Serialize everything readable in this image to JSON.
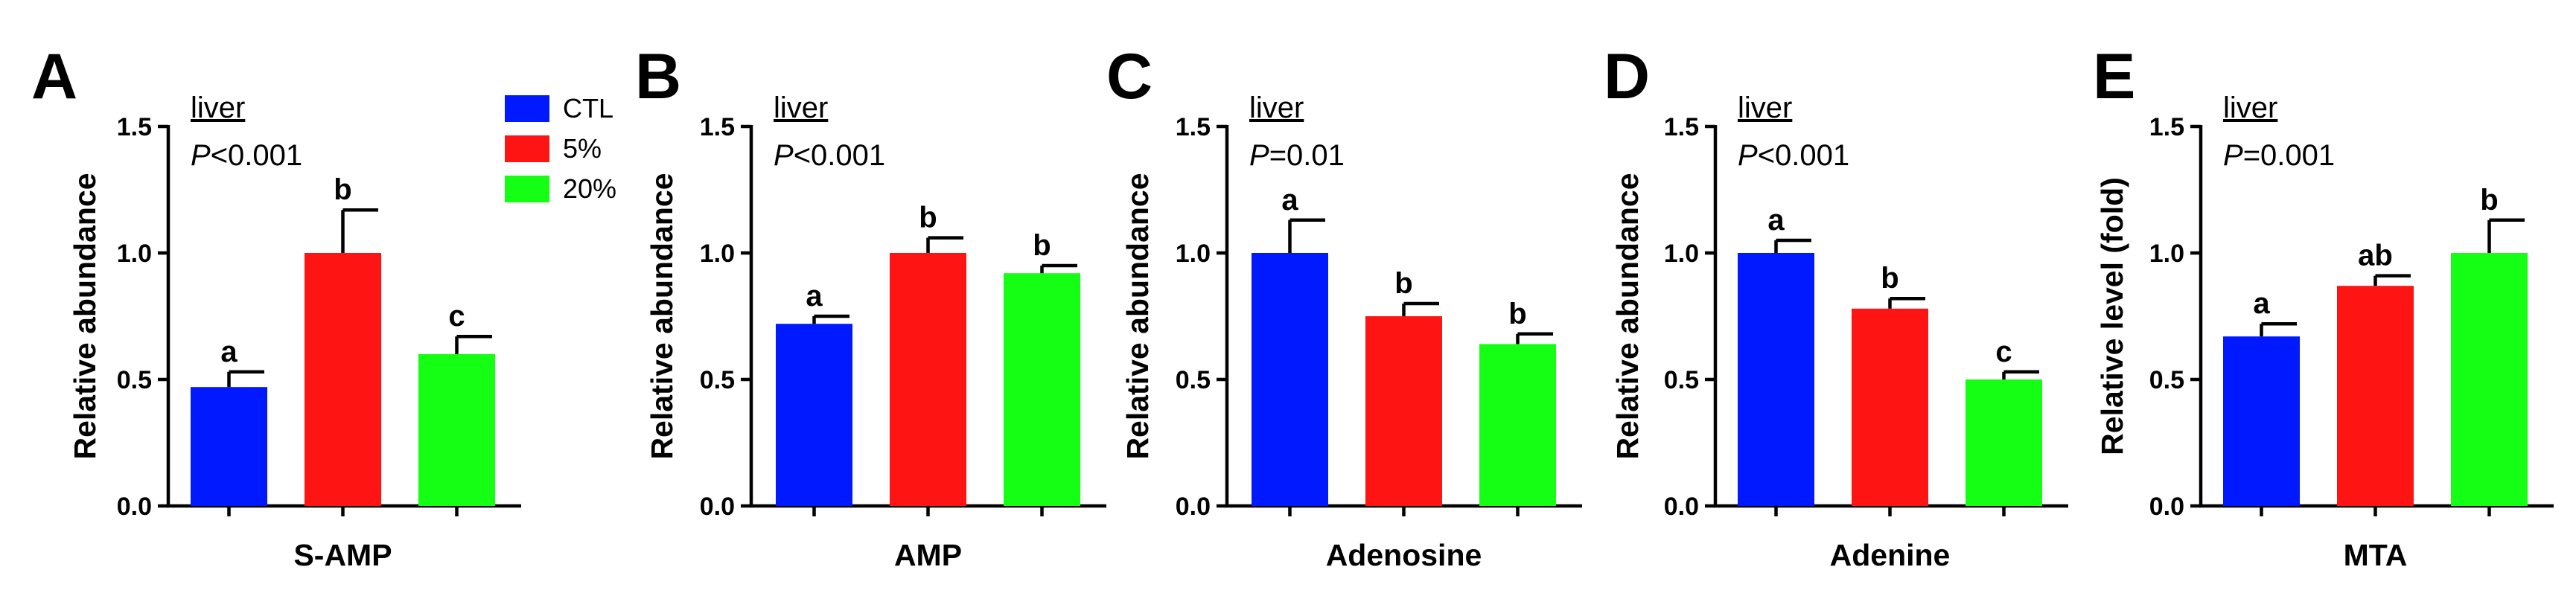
{
  "figure": {
    "legend": [
      {
        "label": "CTL",
        "color": "#0019FF"
      },
      {
        "label": "5%",
        "color": "#FF1414"
      },
      {
        "label": "20%",
        "color": "#14FF14"
      }
    ]
  },
  "chart_data": [
    {
      "type": "bar",
      "panel": "A",
      "title": "",
      "tissue": "liver",
      "p_prefix": "P",
      "p_value": "<0.001",
      "xlabel": "S-AMP",
      "ylabel": "Relative abundance",
      "ylim": [
        0,
        1.5
      ],
      "yticks": [
        "0.0",
        "0.5",
        "1.0",
        "1.5"
      ],
      "categories": [
        "CTL",
        "5%",
        "20%"
      ],
      "values": [
        0.47,
        1.0,
        0.6
      ],
      "errors": [
        0.06,
        0.17,
        0.07
      ],
      "significance": [
        "a",
        "b",
        "c"
      ]
    },
    {
      "type": "bar",
      "panel": "B",
      "title": "",
      "tissue": "liver",
      "p_prefix": "P",
      "p_value": "<0.001",
      "xlabel": "AMP",
      "ylabel": "Relative abundance",
      "ylim": [
        0,
        1.5
      ],
      "yticks": [
        "0.0",
        "0.5",
        "1.0",
        "1.5"
      ],
      "categories": [
        "CTL",
        "5%",
        "20%"
      ],
      "values": [
        0.72,
        1.0,
        0.92
      ],
      "errors": [
        0.03,
        0.06,
        0.03
      ],
      "significance": [
        "a",
        "b",
        "b"
      ]
    },
    {
      "type": "bar",
      "panel": "C",
      "title": "",
      "tissue": "liver",
      "p_prefix": "P",
      "p_value": "=0.01",
      "xlabel": "Adenosine",
      "ylabel": "Relative abundance",
      "ylim": [
        0,
        1.5
      ],
      "yticks": [
        "0.0",
        "0.5",
        "1.0",
        "1.5"
      ],
      "categories": [
        "CTL",
        "5%",
        "20%"
      ],
      "values": [
        1.0,
        0.75,
        0.64
      ],
      "errors": [
        0.13,
        0.05,
        0.04
      ],
      "significance": [
        "a",
        "b",
        "b"
      ]
    },
    {
      "type": "bar",
      "panel": "D",
      "title": "",
      "tissue": "liver",
      "p_prefix": "P",
      "p_value": "<0.001",
      "xlabel": "Adenine",
      "ylabel": "Relative abundance",
      "ylim": [
        0,
        1.5
      ],
      "yticks": [
        "0.0",
        "0.5",
        "1.0",
        "1.5"
      ],
      "categories": [
        "CTL",
        "5%",
        "20%"
      ],
      "values": [
        1.0,
        0.78,
        0.5
      ],
      "errors": [
        0.05,
        0.04,
        0.03
      ],
      "significance": [
        "a",
        "b",
        "c"
      ]
    },
    {
      "type": "bar",
      "panel": "E",
      "title": "",
      "tissue": "liver",
      "p_prefix": "P",
      "p_value": "=0.001",
      "xlabel": "MTA",
      "ylabel": "Relative level (fold)",
      "ylim": [
        0,
        1.5
      ],
      "yticks": [
        "0.0",
        "0.5",
        "1.0",
        "1.5"
      ],
      "categories": [
        "CTL",
        "5%",
        "20%"
      ],
      "values": [
        0.67,
        0.87,
        1.0
      ],
      "errors": [
        0.05,
        0.04,
        0.13
      ],
      "significance": [
        "a",
        "ab",
        "b"
      ]
    }
  ]
}
